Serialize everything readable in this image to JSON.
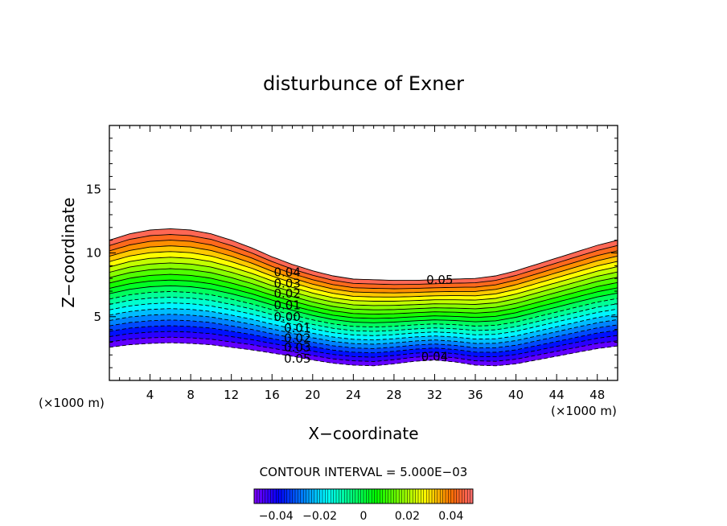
{
  "chart_data": {
    "type": "contour",
    "title": "disturbunce of Exner",
    "xlabel": "X−coordinate",
    "ylabel": "Z−coordinate",
    "x_unit": "(×1000 m)",
    "x_unit_right": "(×1000 m)",
    "xlim": [
      0,
      50
    ],
    "ylim": [
      0,
      20
    ],
    "x_ticks": [
      4,
      8,
      12,
      16,
      20,
      24,
      28,
      32,
      36,
      40,
      44,
      48
    ],
    "y_ticks": [
      5,
      10,
      15
    ],
    "grid": false,
    "contour_interval": 0.005,
    "contour_interval_text": "CONTOUR INTERVAL = 5.000E−03",
    "levels_min": -0.05,
    "levels_max": 0.05,
    "field_top_z": [
      [
        0,
        11.0
      ],
      [
        2,
        11.5
      ],
      [
        4,
        11.8
      ],
      [
        6,
        11.9
      ],
      [
        8,
        11.8
      ],
      [
        10,
        11.5
      ],
      [
        12,
        11.0
      ],
      [
        14,
        10.4
      ],
      [
        16,
        9.7
      ],
      [
        18,
        9.1
      ],
      [
        20,
        8.6
      ],
      [
        22,
        8.2
      ],
      [
        24,
        7.95
      ],
      [
        26,
        7.9
      ],
      [
        28,
        7.85
      ],
      [
        30,
        7.85
      ],
      [
        32,
        7.9
      ],
      [
        34,
        7.95
      ],
      [
        36,
        8.0
      ],
      [
        38,
        8.2
      ],
      [
        40,
        8.6
      ],
      [
        42,
        9.1
      ],
      [
        44,
        9.6
      ],
      [
        46,
        10.1
      ],
      [
        48,
        10.6
      ],
      [
        50,
        11.0
      ]
    ],
    "field_bottom_z": [
      [
        0,
        2.6
      ],
      [
        2,
        2.8
      ],
      [
        4,
        2.9
      ],
      [
        6,
        2.95
      ],
      [
        8,
        2.9
      ],
      [
        10,
        2.8
      ],
      [
        12,
        2.6
      ],
      [
        14,
        2.4
      ],
      [
        16,
        2.15
      ],
      [
        18,
        1.9
      ],
      [
        20,
        1.6
      ],
      [
        22,
        1.35
      ],
      [
        24,
        1.2
      ],
      [
        26,
        1.15
      ],
      [
        28,
        1.3
      ],
      [
        30,
        1.5
      ],
      [
        32,
        1.6
      ],
      [
        34,
        1.45
      ],
      [
        36,
        1.2
      ],
      [
        38,
        1.15
      ],
      [
        40,
        1.3
      ],
      [
        42,
        1.6
      ],
      [
        44,
        1.9
      ],
      [
        46,
        2.2
      ],
      [
        48,
        2.5
      ],
      [
        50,
        2.7
      ]
    ],
    "contour_labels": [
      {
        "text": "0.04",
        "x": 17.5,
        "z": 8.5
      },
      {
        "text": "0.03",
        "x": 17.5,
        "z": 7.6
      },
      {
        "text": "0.02",
        "x": 17.5,
        "z": 6.8
      },
      {
        "text": "0.01",
        "x": 17.5,
        "z": 5.9
      },
      {
        "text": "0.00",
        "x": 17.5,
        "z": 5.0
      },
      {
        "text": "0.01",
        "x": 18.5,
        "z": 4.1
      },
      {
        "text": "0.02",
        "x": 18.5,
        "z": 3.3
      },
      {
        "text": "0.03",
        "x": 18.5,
        "z": 2.6
      },
      {
        "text": "0.05",
        "x": 18.5,
        "z": 1.7
      },
      {
        "text": "0.05",
        "x": 32.5,
        "z": 7.9
      },
      {
        "text": "0.04",
        "x": 32.0,
        "z": 1.85
      }
    ],
    "colorbar": {
      "min": -0.05,
      "max": 0.05,
      "tick_values": [
        -0.04,
        -0.02,
        0,
        0.02,
        0.04
      ],
      "tick_labels": [
        "−0.04",
        "−0.02",
        "0",
        "0.02",
        "0.04"
      ]
    }
  }
}
